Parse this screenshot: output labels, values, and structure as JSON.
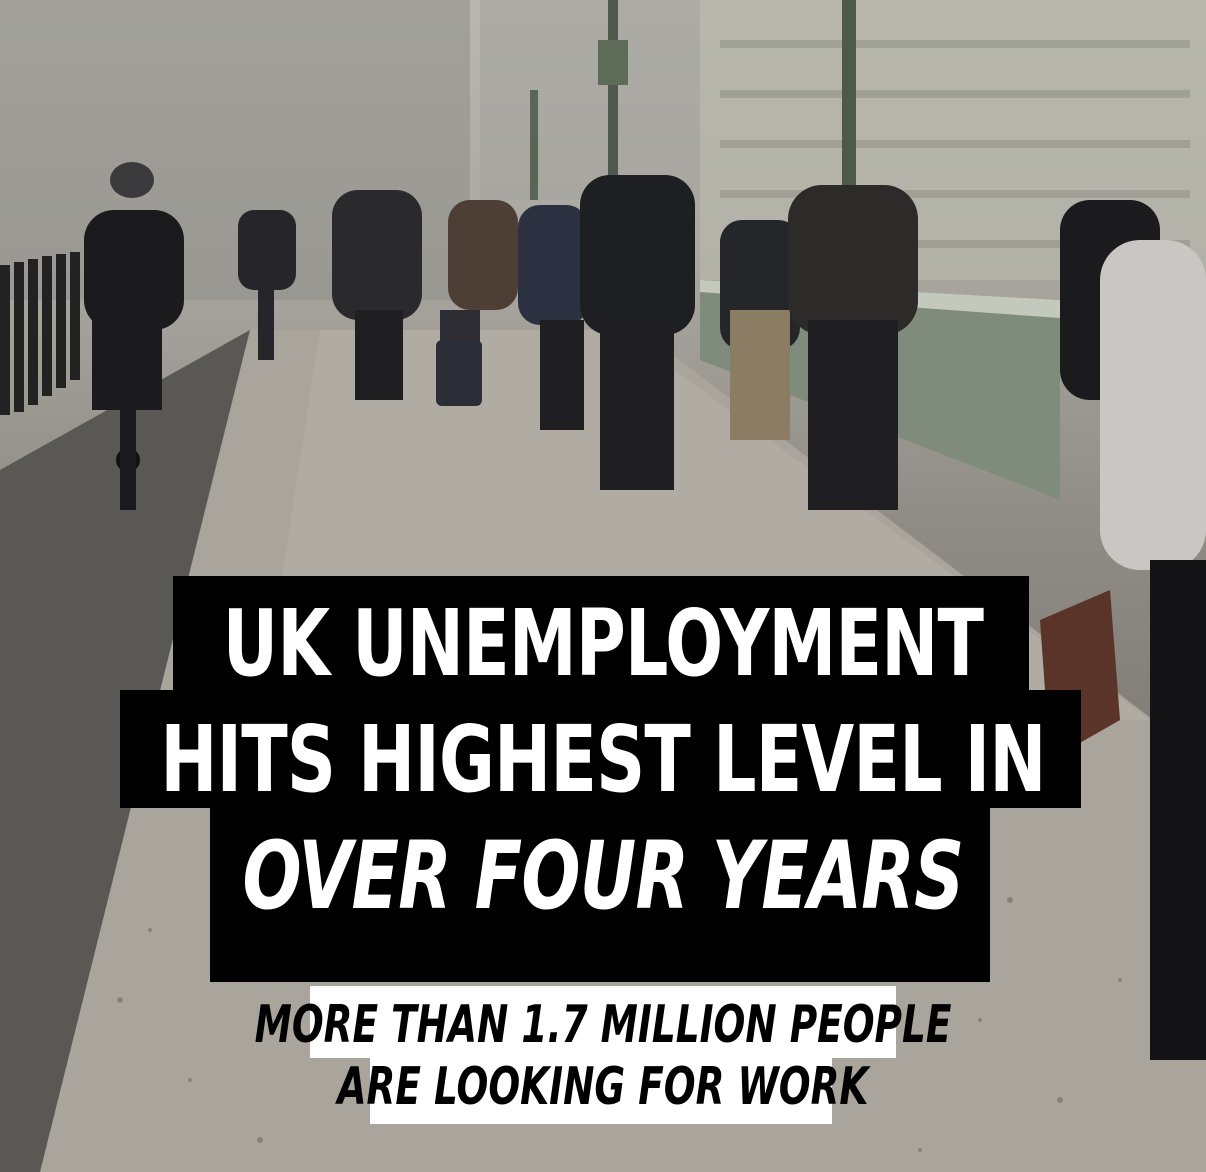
{
  "headline": {
    "line1": "UK UNEMPLOYMENT",
    "line2": "HITS HIGHEST LEVEL IN",
    "line3": "OVER FOUR YEARS"
  },
  "subheadline": {
    "line1": "MORE THAN 1.7 MILLION PEOPLE",
    "line2": "ARE LOOKING FOR WORK"
  },
  "colors": {
    "banner_bg": "#000000",
    "banner_text": "#ffffff",
    "sub_bg": "#ffffff",
    "sub_text": "#000000"
  }
}
